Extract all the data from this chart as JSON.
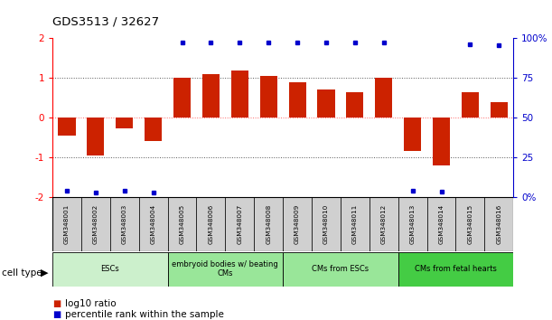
{
  "title": "GDS3513 / 32627",
  "samples": [
    "GSM348001",
    "GSM348002",
    "GSM348003",
    "GSM348004",
    "GSM348005",
    "GSM348006",
    "GSM348007",
    "GSM348008",
    "GSM348009",
    "GSM348010",
    "GSM348011",
    "GSM348012",
    "GSM348013",
    "GSM348014",
    "GSM348015",
    "GSM348016"
  ],
  "log10_ratio": [
    -0.45,
    -0.95,
    -0.28,
    -0.6,
    1.0,
    1.1,
    1.2,
    1.05,
    0.9,
    0.72,
    0.65,
    1.0,
    -0.85,
    -1.2,
    0.65,
    0.38
  ],
  "percentile_y_values": [
    -1.85,
    -1.9,
    -1.85,
    -1.9,
    1.9,
    1.9,
    1.9,
    1.9,
    1.9,
    1.9,
    1.9,
    1.9,
    -1.85,
    -1.88,
    1.85,
    1.82
  ],
  "cell_groups": [
    {
      "label": "ESCs",
      "start": 0,
      "end": 3,
      "color": "#ccf0cc"
    },
    {
      "label": "embryoid bodies w/ beating\nCMs",
      "start": 4,
      "end": 7,
      "color": "#99e699"
    },
    {
      "label": "CMs from ESCs",
      "start": 8,
      "end": 11,
      "color": "#99e699"
    },
    {
      "label": "CMs from fetal hearts",
      "start": 12,
      "end": 15,
      "color": "#44cc44"
    }
  ],
  "ylim": [
    -2,
    2
  ],
  "bar_color": "#cc2200",
  "dot_color": "#0000cc",
  "dotted_line_color": "#555555",
  "zero_line_color": "#ff6666",
  "right_axis_color": "#0000cc",
  "left_yticks": [
    -2,
    -1,
    0,
    1,
    2
  ],
  "right_ytick_positions": [
    -2,
    -1,
    0,
    1,
    2
  ],
  "right_ytick_labels": [
    "0%",
    "25",
    "50",
    "75",
    "100%"
  ],
  "legend_red": "log10 ratio",
  "legend_blue": "percentile rank within the sample",
  "cell_type_label": "cell type",
  "sample_box_color": "#d0d0d0",
  "bar_width": 0.6
}
